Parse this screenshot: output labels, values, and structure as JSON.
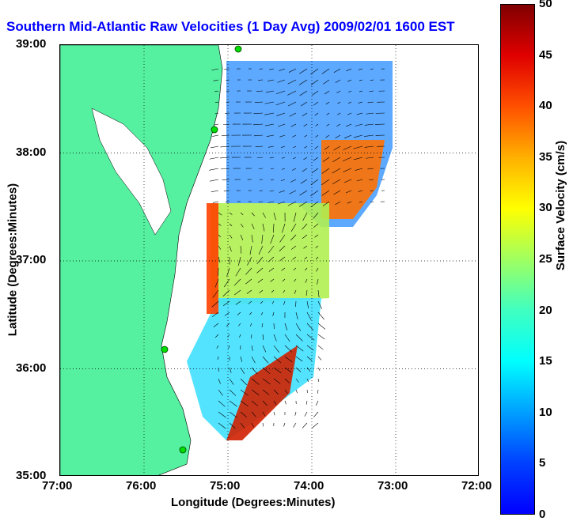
{
  "title": "Southern Mid-Atlantic Raw Velocities (1 Day Avg) 2009/02/01 1600 EST",
  "chart_data": {
    "type": "heatmap",
    "subtype": "surface current vector map",
    "xlabel": "Longitude (Degrees:Minutes)",
    "ylabel": "Latitude (Degrees:Minutes)",
    "colorbar_label": "Surface Velocity (cm/s)",
    "x_ticks": [
      "77:00",
      "76:00",
      "75:00",
      "74:00",
      "73:00",
      "72:00"
    ],
    "y_ticks": [
      "39:00",
      "38:00",
      "37:00",
      "36:00",
      "35:00"
    ],
    "colorbar_ticks": [
      "0",
      "5",
      "10",
      "15",
      "20",
      "25",
      "30",
      "35",
      "40",
      "45",
      "50"
    ],
    "xlim": [
      -77,
      -72
    ],
    "ylim": [
      35,
      39
    ],
    "clim": [
      0,
      50
    ],
    "grid": true,
    "colors": {
      "land": "#55f0a0",
      "title": "#0000ff",
      "arrows": "#000000"
    }
  }
}
